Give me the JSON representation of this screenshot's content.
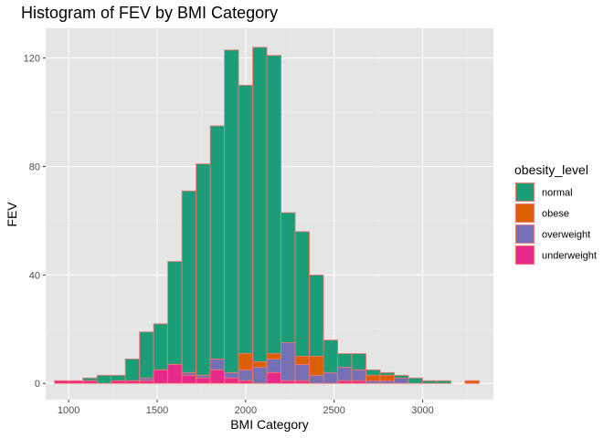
{
  "chart_data": {
    "type": "bar",
    "subtype": "stacked-histogram",
    "title": "Histogram of FEV by BMI Category",
    "xlabel": "BMI Category",
    "ylabel": "FEV",
    "xlim": [
      870,
      3400
    ],
    "ylim": [
      -6,
      131
    ],
    "x_ticks": [
      1000,
      1500,
      2000,
      2500,
      3000
    ],
    "y_ticks": [
      0,
      40,
      80,
      120
    ],
    "bin_width": 80,
    "bin_centers": [
      960,
      1040,
      1120,
      1200,
      1280,
      1360,
      1440,
      1520,
      1600,
      1680,
      1760,
      1840,
      1920,
      2000,
      2080,
      2160,
      2240,
      2320,
      2400,
      2480,
      2560,
      2640,
      2720,
      2800,
      2880,
      2960,
      3040,
      3120,
      3200,
      3280
    ],
    "grid": true,
    "panel_background": "#e5e5e5",
    "bar_outline": "#f8766d",
    "legend": {
      "title": "obesity_level",
      "position": "right"
    },
    "series": [
      {
        "name": "normal",
        "color": "#1b9e77",
        "values": [
          0,
          0,
          1,
          3,
          2,
          8,
          17,
          17,
          38,
          67,
          78,
          86,
          119,
          99,
          116,
          110,
          48,
          46,
          30,
          12,
          5,
          6,
          2,
          1,
          1,
          2,
          1,
          1,
          0,
          0
        ]
      },
      {
        "name": "obese",
        "color": "#d95f02",
        "values": [
          0,
          0,
          0,
          0,
          0,
          0,
          0,
          0,
          0,
          0,
          0,
          0,
          0,
          6,
          2,
          2,
          0,
          3,
          7,
          0,
          0,
          0,
          2,
          2,
          0,
          0,
          0,
          0,
          0,
          1
        ]
      },
      {
        "name": "overweight",
        "color": "#7570b3",
        "values": [
          0,
          0,
          0,
          0,
          0,
          0,
          1,
          0,
          0,
          1,
          1,
          4,
          2,
          4,
          6,
          5,
          14,
          6,
          3,
          4,
          5,
          4,
          1,
          1,
          2,
          0,
          0,
          0,
          0,
          0
        ]
      },
      {
        "name": "underweight",
        "color": "#e7298a",
        "values": [
          1,
          1,
          1,
          0,
          1,
          1,
          1,
          5,
          7,
          3,
          2,
          5,
          2,
          1,
          0,
          4,
          1,
          1,
          0,
          0,
          1,
          1,
          0,
          0,
          0,
          0,
          0,
          0,
          0,
          0
        ]
      }
    ]
  }
}
